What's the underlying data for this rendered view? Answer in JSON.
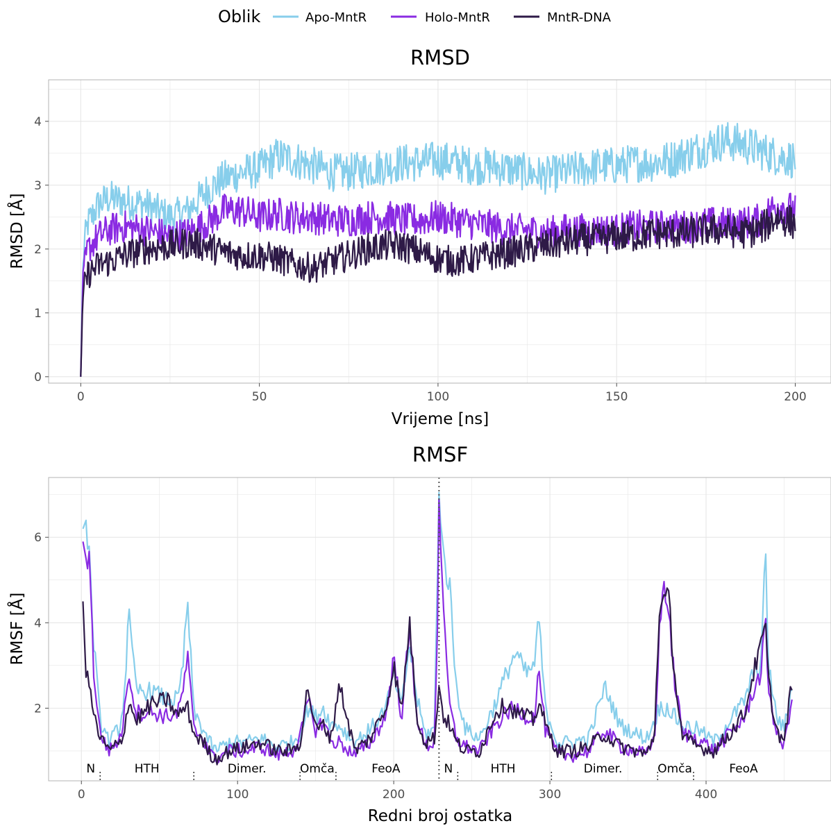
{
  "legend": {
    "title": "Oblik",
    "items": [
      {
        "label": "Apo-MntR",
        "color": "#87CEEB"
      },
      {
        "label": "Holo-MntR",
        "color": "#8A2BE2"
      },
      {
        "label": "MntR-DNA",
        "color": "#2E1A47"
      }
    ]
  },
  "chart_data": [
    {
      "type": "line",
      "title": "RMSD",
      "xlabel": "Vrijeme [ns]",
      "ylabel": "RMSD [Å]",
      "xlim": [
        -9,
        210
      ],
      "ylim": [
        -0.1,
        4.65
      ],
      "xticks": [
        0,
        50,
        100,
        150,
        200
      ],
      "yticks": [
        0,
        1,
        2,
        3,
        4
      ],
      "grid": true,
      "series": [
        {
          "name": "Apo-MntR",
          "color": "#87CEEB",
          "x": [
            0,
            0.5,
            1,
            2,
            5,
            8,
            12,
            18,
            25,
            30,
            35,
            40,
            45,
            50,
            55,
            60,
            65,
            70,
            75,
            80,
            85,
            90,
            95,
            100,
            105,
            110,
            115,
            120,
            125,
            130,
            135,
            140,
            145,
            150,
            155,
            160,
            165,
            170,
            175,
            180,
            185,
            190,
            195,
            200
          ],
          "y": [
            0,
            1.5,
            2.1,
            2.4,
            2.7,
            2.8,
            2.75,
            2.7,
            2.5,
            2.6,
            2.9,
            3.1,
            3.2,
            3.25,
            3.45,
            3.4,
            3.3,
            3.2,
            3.2,
            3.25,
            3.3,
            3.35,
            3.35,
            3.4,
            3.35,
            3.3,
            3.3,
            3.25,
            3.2,
            3.15,
            3.2,
            3.25,
            3.3,
            3.3,
            3.35,
            3.35,
            3.4,
            3.5,
            3.6,
            3.7,
            3.65,
            3.55,
            3.45,
            3.4
          ]
        },
        {
          "name": "Holo-MntR",
          "color": "#8A2BE2",
          "x": [
            0,
            0.5,
            1,
            2,
            5,
            8,
            12,
            18,
            25,
            30,
            35,
            40,
            45,
            50,
            55,
            60,
            65,
            70,
            75,
            80,
            85,
            90,
            95,
            100,
            105,
            110,
            115,
            120,
            125,
            130,
            135,
            140,
            145,
            150,
            155,
            160,
            165,
            170,
            175,
            180,
            185,
            190,
            195,
            200
          ],
          "y": [
            0,
            1.3,
            1.7,
            2.0,
            2.2,
            2.3,
            2.35,
            2.3,
            2.2,
            2.25,
            2.4,
            2.6,
            2.6,
            2.5,
            2.55,
            2.5,
            2.5,
            2.45,
            2.45,
            2.5,
            2.5,
            2.45,
            2.45,
            2.5,
            2.45,
            2.4,
            2.35,
            2.3,
            2.3,
            2.25,
            2.3,
            2.3,
            2.3,
            2.3,
            2.35,
            2.35,
            2.35,
            2.35,
            2.4,
            2.4,
            2.4,
            2.45,
            2.7,
            2.6
          ]
        },
        {
          "name": "MntR-DNA",
          "color": "#2E1A47",
          "x": [
            0,
            0.5,
            1,
            2,
            5,
            8,
            12,
            18,
            25,
            30,
            35,
            40,
            45,
            50,
            55,
            60,
            65,
            70,
            75,
            80,
            85,
            90,
            95,
            100,
            105,
            110,
            115,
            120,
            125,
            130,
            135,
            140,
            145,
            150,
            155,
            160,
            165,
            170,
            175,
            180,
            185,
            190,
            195,
            200
          ],
          "y": [
            0,
            1.1,
            1.4,
            1.6,
            1.75,
            1.8,
            1.9,
            2.0,
            2.05,
            2.1,
            2.05,
            1.95,
            1.9,
            1.9,
            1.85,
            1.75,
            1.7,
            1.8,
            1.9,
            2.0,
            2.05,
            2.05,
            1.95,
            1.85,
            1.8,
            1.85,
            1.9,
            1.95,
            2.0,
            2.05,
            2.1,
            2.15,
            2.15,
            2.2,
            2.2,
            2.25,
            2.25,
            2.25,
            2.3,
            2.3,
            2.25,
            2.3,
            2.5,
            2.4
          ]
        }
      ]
    },
    {
      "type": "line",
      "title": "RMSF",
      "xlabel": "Redni broj ostatka",
      "ylabel": "RMSF [Å]",
      "xlim": [
        -21,
        480
      ],
      "ylim": [
        0.3,
        7.4
      ],
      "xticks": [
        0,
        100,
        200,
        300,
        400
      ],
      "yticks": [
        2,
        4,
        6
      ],
      "grid": true,
      "vline": 229,
      "regions": [
        {
          "label": "N",
          "x": 6
        },
        {
          "label": "HTH",
          "x": 42
        },
        {
          "label": "Dimer.",
          "x": 106
        },
        {
          "label": "Omča",
          "x": 151
        },
        {
          "label": "FeoA",
          "x": 195
        },
        {
          "label": "N",
          "x": 235
        },
        {
          "label": "HTH",
          "x": 270
        },
        {
          "label": "Dimer.",
          "x": 334
        },
        {
          "label": "Omča",
          "x": 380
        },
        {
          "label": "FeoA",
          "x": 424
        }
      ],
      "boundaries": [
        12,
        72,
        140,
        163,
        241,
        301,
        369,
        392
      ],
      "series": [
        {
          "name": "Apo-MntR",
          "color": "#87CEEB",
          "x": [
            1,
            3,
            5,
            8,
            12,
            18,
            25,
            28,
            30,
            35,
            45,
            55,
            62,
            65,
            68,
            72,
            78,
            85,
            95,
            105,
            115,
            125,
            135,
            140,
            145,
            150,
            155,
            160,
            165,
            175,
            185,
            195,
            200,
            205,
            210,
            215,
            220,
            226,
            228,
            229,
            232,
            236,
            240,
            246,
            255,
            265,
            272,
            278,
            285,
            290,
            293,
            297,
            305,
            315,
            325,
            335,
            345,
            355,
            362,
            367,
            370,
            373,
            376,
            380,
            385,
            395,
            405,
            415,
            425,
            430,
            435,
            438,
            440,
            445,
            450,
            455
          ],
          "y": [
            6.2,
            6.4,
            5.5,
            3.5,
            1.7,
            1.2,
            1.6,
            2.5,
            4.3,
            2.4,
            2.4,
            2.2,
            2.2,
            3.0,
            4.5,
            1.9,
            1.5,
            1.0,
            1.2,
            1.2,
            1.3,
            1.1,
            1.2,
            1.4,
            2.0,
            1.8,
            2.0,
            1.6,
            1.6,
            1.2,
            1.5,
            2.0,
            2.8,
            2.0,
            3.5,
            2.2,
            1.4,
            1.5,
            5.0,
            7.2,
            5.5,
            4.8,
            2.5,
            1.5,
            1.3,
            2.1,
            2.8,
            3.3,
            2.8,
            3.0,
            4.1,
            2.0,
            1.2,
            1.2,
            1.3,
            2.5,
            1.6,
            1.4,
            1.3,
            1.7,
            2.0,
            2.0,
            2.0,
            1.8,
            1.6,
            1.5,
            1.2,
            1.7,
            2.2,
            2.8,
            3.0,
            5.6,
            3.0,
            1.8,
            1.5,
            2.5
          ]
        },
        {
          "name": "Holo-MntR",
          "color": "#8A2BE2",
          "x": [
            1,
            3,
            5,
            8,
            12,
            18,
            25,
            28,
            30,
            35,
            45,
            55,
            62,
            65,
            68,
            72,
            78,
            85,
            95,
            105,
            115,
            125,
            135,
            140,
            145,
            150,
            155,
            160,
            165,
            175,
            185,
            195,
            200,
            205,
            210,
            215,
            220,
            226,
            228,
            229,
            232,
            236,
            240,
            246,
            255,
            265,
            272,
            278,
            285,
            290,
            293,
            297,
            305,
            315,
            325,
            335,
            345,
            355,
            362,
            367,
            370,
            373,
            376,
            380,
            385,
            395,
            405,
            415,
            425,
            430,
            435,
            438,
            440,
            445,
            450,
            455
          ],
          "y": [
            5.9,
            5.5,
            5.6,
            2.8,
            1.4,
            1.0,
            1.3,
            2.0,
            2.9,
            1.9,
            1.9,
            1.8,
            1.9,
            2.4,
            3.2,
            1.5,
            1.3,
            0.8,
            1.0,
            1.0,
            1.1,
            0.9,
            1.0,
            1.3,
            2.2,
            1.5,
            1.7,
            1.2,
            1.2,
            0.9,
            1.2,
            1.8,
            3.2,
            1.8,
            3.8,
            1.8,
            1.1,
            1.2,
            4.0,
            7.0,
            4.0,
            2.0,
            1.3,
            1.1,
            1.0,
            1.6,
            1.9,
            2.0,
            1.8,
            1.8,
            2.9,
            1.5,
            0.9,
            0.9,
            1.0,
            1.5,
            1.1,
            1.0,
            0.9,
            1.3,
            3.7,
            5.0,
            4.2,
            2.6,
            1.4,
            1.3,
            1.0,
            1.4,
            1.8,
            2.4,
            2.8,
            4.0,
            2.5,
            1.4,
            1.1,
            2.3
          ]
        },
        {
          "name": "MntR-DNA",
          "color": "#2E1A47",
          "x": [
            1,
            3,
            5,
            8,
            12,
            18,
            25,
            28,
            30,
            35,
            45,
            55,
            62,
            65,
            68,
            72,
            78,
            85,
            95,
            105,
            115,
            125,
            135,
            140,
            145,
            150,
            155,
            160,
            165,
            175,
            185,
            195,
            200,
            205,
            210,
            215,
            220,
            226,
            228,
            229,
            232,
            236,
            240,
            246,
            255,
            265,
            272,
            278,
            285,
            290,
            293,
            297,
            305,
            315,
            325,
            335,
            345,
            355,
            362,
            367,
            370,
            373,
            376,
            380,
            385,
            395,
            405,
            415,
            425,
            430,
            435,
            438,
            440,
            445,
            450,
            455
          ],
          "y": [
            4.5,
            2.7,
            2.6,
            1.8,
            1.3,
            1.0,
            1.2,
            1.6,
            2.2,
            1.7,
            2.1,
            2.2,
            1.8,
            2.0,
            2.0,
            1.4,
            1.2,
            0.8,
            1.0,
            1.1,
            1.2,
            1.0,
            1.0,
            1.2,
            2.5,
            1.5,
            1.6,
            1.3,
            2.6,
            1.0,
            1.3,
            2.0,
            3.0,
            1.9,
            4.0,
            1.8,
            1.2,
            1.3,
            2.1,
            2.5,
            1.8,
            1.6,
            1.2,
            1.0,
            1.0,
            1.9,
            2.1,
            1.9,
            1.8,
            1.7,
            2.2,
            1.6,
            1.0,
            1.0,
            1.1,
            1.4,
            1.1,
            1.0,
            0.9,
            1.4,
            4.3,
            4.5,
            4.6,
            2.7,
            1.3,
            1.1,
            1.0,
            1.4,
            1.9,
            2.8,
            3.4,
            4.0,
            2.6,
            1.5,
            1.2,
            2.6
          ]
        }
      ]
    }
  ]
}
